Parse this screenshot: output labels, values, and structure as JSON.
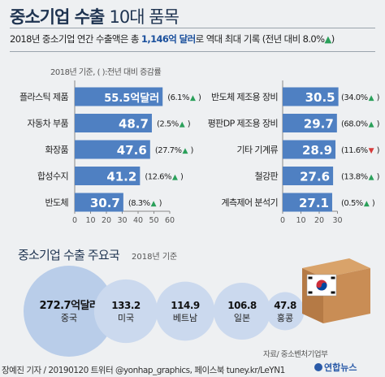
{
  "header": {
    "title_main": "중소기업 수출",
    "title_sub": "10대 품목",
    "subtitle_pre": "2018년 중소기업 연간 수출액은 총",
    "subtitle_value": "1,146억 달러",
    "subtitle_post": "로 역대 최대 기록 (전년 대비 8.0%",
    "subtitle_end": ")",
    "note": "2018년 기준, (  ):전년 대비 증감률"
  },
  "chart_data": [
    {
      "type": "bar",
      "orientation": "horizontal",
      "categories": [
        "플라스틱 제품",
        "자동차 부품",
        "화장품",
        "합성수지",
        "반도체"
      ],
      "values": [
        55.5,
        48.7,
        47.6,
        41.2,
        30.7
      ],
      "value_labels": [
        "55.5억달러",
        "48.7",
        "47.6",
        "41.2",
        "30.7"
      ],
      "changes": [
        "(6.1%",
        "(2.5%",
        "(27.7%",
        "(12.6%",
        "(8.3%"
      ],
      "change_direction": [
        "up",
        "up",
        "up",
        "up",
        "up"
      ],
      "xlim": [
        0,
        60
      ],
      "ticks": [
        0,
        10,
        20,
        30,
        40,
        50,
        60
      ]
    },
    {
      "type": "bar",
      "orientation": "horizontal",
      "categories": [
        "반도체 제조용 장비",
        "평판DP 제조용 장비",
        "기타 기계류",
        "철강판",
        "계측제어 분석기"
      ],
      "values": [
        30.5,
        29.7,
        28.9,
        27.6,
        27.1
      ],
      "value_labels": [
        "30.5",
        "29.7",
        "28.9",
        "27.6",
        "27.1"
      ],
      "changes": [
        "(34.0%",
        "(68.0%",
        "(11.6%",
        "(13.8%",
        "(0.5%"
      ],
      "change_direction": [
        "up",
        "up",
        "down",
        "up",
        "up"
      ],
      "xlim": [
        0,
        30
      ],
      "ticks": [
        0,
        10,
        20,
        30
      ]
    },
    {
      "type": "bubble",
      "title": "중소기업 수출 주요국",
      "note": "2018년 기준",
      "categories": [
        "중국",
        "미국",
        "베트남",
        "일본",
        "홍콩"
      ],
      "values": [
        272.7,
        133.2,
        114.9,
        106.8,
        47.8
      ],
      "value_labels": [
        "272.7억달러",
        "133.2",
        "114.9",
        "106.8",
        "47.8"
      ]
    }
  ],
  "colors": {
    "bar": "#4f80c2",
    "bar_light": "#6f9ad0",
    "up": "#2aa05a",
    "down": "#d63a3a",
    "bubble_big": "#b9cde9",
    "bubble_small": "#cbd9ee",
    "title": "#1e3350"
  },
  "footer": {
    "source": "자료/ 중소벤처기업부",
    "credit": "장예진 기자 / 20190120 트위터 @yonhap_graphics, 페이스북 tuney.kr/LeYN1",
    "logo": "연합뉴스"
  }
}
